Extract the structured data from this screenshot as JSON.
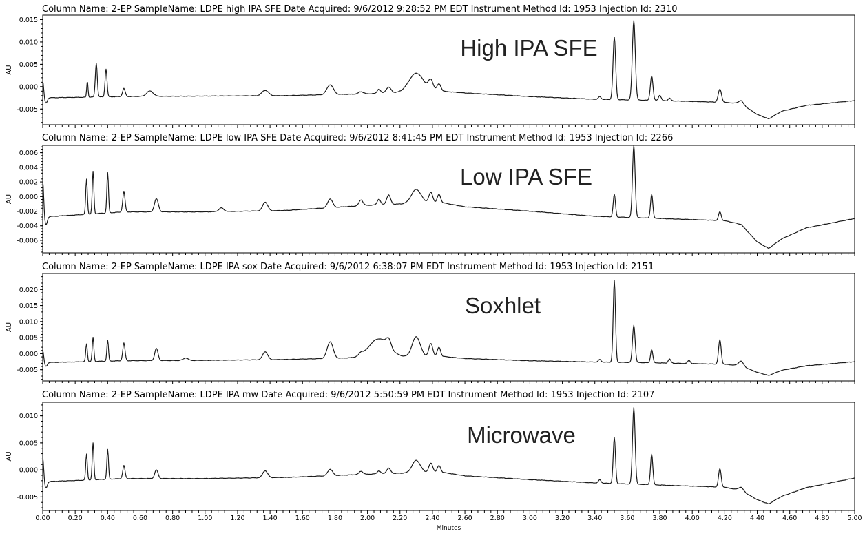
{
  "chart_data": [
    {
      "type": "line",
      "header": "Column Name: 2-EP SampleName: LDPE high IPA SFE Date Acquired: 9/6/2012 9:28:52 PM EDT Instrument Method Id: 1953 Injection Id: 2310",
      "annotation": "High IPA SFE",
      "ylabel": "AU",
      "ylim": [
        -0.0085,
        0.016
      ],
      "yticks": [
        -0.005,
        0.0,
        0.005,
        0.01,
        0.015
      ],
      "ytick_labels": [
        "-0.005",
        "0.000",
        "0.005",
        "0.010",
        "0.015"
      ],
      "baseline": [
        [
          0.0,
          -0.0025
        ],
        [
          0.5,
          -0.0022
        ],
        [
          1.0,
          -0.0021
        ],
        [
          1.5,
          -0.002
        ],
        [
          2.0,
          -0.0016
        ],
        [
          2.45,
          -0.001
        ],
        [
          2.6,
          -0.0014
        ],
        [
          3.0,
          -0.0022
        ],
        [
          3.4,
          -0.0028
        ],
        [
          3.8,
          -0.0031
        ],
        [
          4.2,
          -0.0035
        ],
        [
          4.3,
          -0.0038
        ],
        [
          4.4,
          -0.0062
        ],
        [
          4.47,
          -0.0072
        ],
        [
          4.55,
          -0.0055
        ],
        [
          4.7,
          -0.0042
        ],
        [
          5.0,
          -0.0031
        ]
      ],
      "peaks": [
        [
          0.0,
          0.0038,
          0.006
        ],
        [
          0.02,
          -0.0012,
          0.008
        ],
        [
          0.275,
          0.0036,
          0.004
        ],
        [
          0.33,
          0.0076,
          0.006
        ],
        [
          0.39,
          0.0062,
          0.006
        ],
        [
          0.5,
          0.0018,
          0.008
        ],
        [
          0.66,
          0.0012,
          0.02
        ],
        [
          1.37,
          0.0012,
          0.02
        ],
        [
          1.77,
          0.0022,
          0.02
        ],
        [
          1.96,
          0.0005,
          0.015
        ],
        [
          2.07,
          0.001,
          0.01
        ],
        [
          2.13,
          0.0013,
          0.015
        ],
        [
          2.3,
          0.0042,
          0.045
        ],
        [
          2.39,
          0.0022,
          0.015
        ],
        [
          2.44,
          0.0016,
          0.012
        ],
        [
          3.43,
          0.0006,
          0.008
        ],
        [
          3.52,
          0.014,
          0.008
        ],
        [
          3.64,
          0.0178,
          0.009
        ],
        [
          3.75,
          0.0055,
          0.008
        ],
        [
          3.8,
          0.0012,
          0.008
        ],
        [
          3.86,
          0.0006,
          0.008
        ],
        [
          4.17,
          0.0029,
          0.01
        ],
        [
          4.3,
          0.0007,
          0.015
        ]
      ]
    },
    {
      "type": "line",
      "header": "Column Name: 2-EP SampleName: LDPE low IPA SFE Date Acquired: 9/6/2012 8:41:45 PM EDT Instrument Method Id: 1953 Injection Id: 2266",
      "annotation": "Low IPA SFE",
      "ylabel": "AU",
      "ylim": [
        -0.0077,
        0.007
      ],
      "yticks": [
        -0.006,
        -0.004,
        -0.002,
        0.0,
        0.002,
        0.004,
        0.006
      ],
      "ytick_labels": [
        "-0.006",
        "-0.004",
        "-0.002",
        "0.000",
        "0.002",
        "0.004",
        "0.006"
      ],
      "baseline": [
        [
          0.0,
          -0.0028
        ],
        [
          0.5,
          -0.0021
        ],
        [
          1.0,
          -0.0021
        ],
        [
          1.5,
          -0.0019
        ],
        [
          2.0,
          -0.0012
        ],
        [
          2.45,
          -0.0008
        ],
        [
          2.6,
          -0.0014
        ],
        [
          3.0,
          -0.002
        ],
        [
          3.4,
          -0.0027
        ],
        [
          3.8,
          -0.003
        ],
        [
          4.2,
          -0.0033
        ],
        [
          4.3,
          -0.0038
        ],
        [
          4.4,
          -0.0062
        ],
        [
          4.47,
          -0.0071
        ],
        [
          4.55,
          -0.0058
        ],
        [
          4.7,
          -0.0043
        ],
        [
          5.0,
          -0.003
        ]
      ],
      "peaks": [
        [
          0.0,
          0.005,
          0.006
        ],
        [
          0.02,
          -0.0011,
          0.008
        ],
        [
          0.27,
          0.0048,
          0.005
        ],
        [
          0.31,
          0.0058,
          0.005
        ],
        [
          0.4,
          0.0055,
          0.005
        ],
        [
          0.5,
          0.0028,
          0.007
        ],
        [
          0.7,
          0.0018,
          0.012
        ],
        [
          1.1,
          0.0005,
          0.015
        ],
        [
          1.37,
          0.0012,
          0.015
        ],
        [
          1.77,
          0.0012,
          0.015
        ],
        [
          1.96,
          0.0008,
          0.012
        ],
        [
          2.07,
          0.0008,
          0.01
        ],
        [
          2.13,
          0.0013,
          0.012
        ],
        [
          2.3,
          0.0019,
          0.03
        ],
        [
          2.39,
          0.0014,
          0.012
        ],
        [
          2.44,
          0.0011,
          0.01
        ],
        [
          3.52,
          0.0031,
          0.007
        ],
        [
          3.64,
          0.0099,
          0.008
        ],
        [
          3.75,
          0.0033,
          0.007
        ],
        [
          4.17,
          0.0012,
          0.008
        ]
      ]
    },
    {
      "type": "line",
      "header": "Column Name: 2-EP SampleName: LDPE IPA sox Date Acquired: 9/6/2012 6:38:07 PM EDT Instrument Method Id: 1953 Injection Id: 2151",
      "annotation": "Soxhlet",
      "ylabel": "AU",
      "ylim": [
        -0.0085,
        0.025
      ],
      "yticks": [
        -0.005,
        0.0,
        0.005,
        0.01,
        0.015,
        0.02
      ],
      "ytick_labels": [
        "-0.005",
        "0.000",
        "0.005",
        "0.010",
        "0.015",
        "0.020"
      ],
      "baseline": [
        [
          0.0,
          -0.0028
        ],
        [
          0.5,
          -0.0022
        ],
        [
          1.0,
          -0.0021
        ],
        [
          1.5,
          -0.0018
        ],
        [
          2.0,
          -0.0012
        ],
        [
          2.45,
          -0.0008
        ],
        [
          2.6,
          -0.0015
        ],
        [
          3.0,
          -0.0022
        ],
        [
          3.4,
          -0.0026
        ],
        [
          3.8,
          -0.0029
        ],
        [
          4.2,
          -0.0033
        ],
        [
          4.3,
          -0.0038
        ],
        [
          4.4,
          -0.0058
        ],
        [
          4.47,
          -0.0068
        ],
        [
          4.55,
          -0.0052
        ],
        [
          4.7,
          -0.0038
        ],
        [
          5.0,
          -0.0025
        ]
      ],
      "peaks": [
        [
          0.0,
          0.0038,
          0.006
        ],
        [
          0.02,
          -0.0012,
          0.008
        ],
        [
          0.27,
          0.0055,
          0.005
        ],
        [
          0.31,
          0.0075,
          0.005
        ],
        [
          0.4,
          0.0065,
          0.005
        ],
        [
          0.5,
          0.0055,
          0.007
        ],
        [
          0.7,
          0.0038,
          0.01
        ],
        [
          0.88,
          0.0008,
          0.015
        ],
        [
          1.37,
          0.0025,
          0.015
        ],
        [
          1.77,
          0.0052,
          0.018
        ],
        [
          1.96,
          0.0008,
          0.012
        ],
        [
          2.07,
          0.0058,
          0.06
        ],
        [
          2.13,
          0.0025,
          0.015
        ],
        [
          2.3,
          0.0062,
          0.025
        ],
        [
          2.39,
          0.004,
          0.012
        ],
        [
          2.44,
          0.0028,
          0.01
        ],
        [
          3.43,
          0.0008,
          0.008
        ],
        [
          3.52,
          0.0255,
          0.007
        ],
        [
          3.64,
          0.0117,
          0.008
        ],
        [
          3.75,
          0.0042,
          0.007
        ],
        [
          3.86,
          0.0013,
          0.008
        ],
        [
          3.98,
          0.001,
          0.008
        ],
        [
          4.17,
          0.0076,
          0.008
        ],
        [
          4.3,
          0.0015,
          0.015
        ]
      ]
    },
    {
      "type": "line",
      "header": "Column Name: 2-EP SampleName: LDPE IPA mw Date Acquired: 9/6/2012 5:50:59 PM EDT Instrument Method Id: 1953 Injection Id: 2107",
      "annotation": "Microwave",
      "ylabel": "AU",
      "ylim": [
        -0.0075,
        0.0125
      ],
      "yticks": [
        -0.005,
        0.0,
        0.005,
        0.01
      ],
      "ytick_labels": [
        "-0.005",
        "0.000",
        "0.005",
        "0.010"
      ],
      "baseline": [
        [
          0.0,
          -0.0022
        ],
        [
          0.5,
          -0.0016
        ],
        [
          1.0,
          -0.0016
        ],
        [
          1.5,
          -0.0014
        ],
        [
          2.0,
          -0.0008
        ],
        [
          2.45,
          -0.0004
        ],
        [
          2.6,
          -0.0011
        ],
        [
          3.0,
          -0.0018
        ],
        [
          3.4,
          -0.0024
        ],
        [
          3.8,
          -0.0028
        ],
        [
          4.2,
          -0.0032
        ],
        [
          4.3,
          -0.0038
        ],
        [
          4.4,
          -0.0055
        ],
        [
          4.47,
          -0.0063
        ],
        [
          4.55,
          -0.0049
        ],
        [
          4.7,
          -0.0033
        ],
        [
          5.0,
          -0.0015
        ]
      ],
      "peaks": [
        [
          0.0,
          0.0045,
          0.006
        ],
        [
          0.02,
          -0.0012,
          0.008
        ],
        [
          0.27,
          0.0048,
          0.005
        ],
        [
          0.31,
          0.0068,
          0.005
        ],
        [
          0.4,
          0.0055,
          0.005
        ],
        [
          0.5,
          0.0024,
          0.007
        ],
        [
          0.7,
          0.0016,
          0.01
        ],
        [
          1.37,
          0.0013,
          0.015
        ],
        [
          1.77,
          0.0012,
          0.015
        ],
        [
          1.96,
          0.0006,
          0.012
        ],
        [
          2.07,
          0.0006,
          0.01
        ],
        [
          2.13,
          0.001,
          0.012
        ],
        [
          2.3,
          0.0023,
          0.025
        ],
        [
          2.39,
          0.0017,
          0.012
        ],
        [
          2.44,
          0.0012,
          0.01
        ],
        [
          3.43,
          0.0006,
          0.008
        ],
        [
          3.52,
          0.0085,
          0.007
        ],
        [
          3.64,
          0.0142,
          0.008
        ],
        [
          3.75,
          0.0057,
          0.007
        ],
        [
          4.17,
          0.0034,
          0.008
        ],
        [
          4.3,
          0.0006,
          0.015
        ]
      ]
    }
  ],
  "x_axis": {
    "label": "Minutes",
    "xlim": [
      0.0,
      5.0
    ],
    "major_tick_labels": [
      "0.00",
      "0.20",
      "0.40",
      "0.60",
      "0.80",
      "1.00",
      "1.20",
      "1.40",
      "1.60",
      "1.80",
      "2.00",
      "2.20",
      "2.40",
      "2.60",
      "2.80",
      "3.00",
      "3.20",
      "3.40",
      "3.60",
      "3.80",
      "4.00",
      "4.20",
      "4.40",
      "4.60",
      "4.80",
      "5.00"
    ]
  }
}
